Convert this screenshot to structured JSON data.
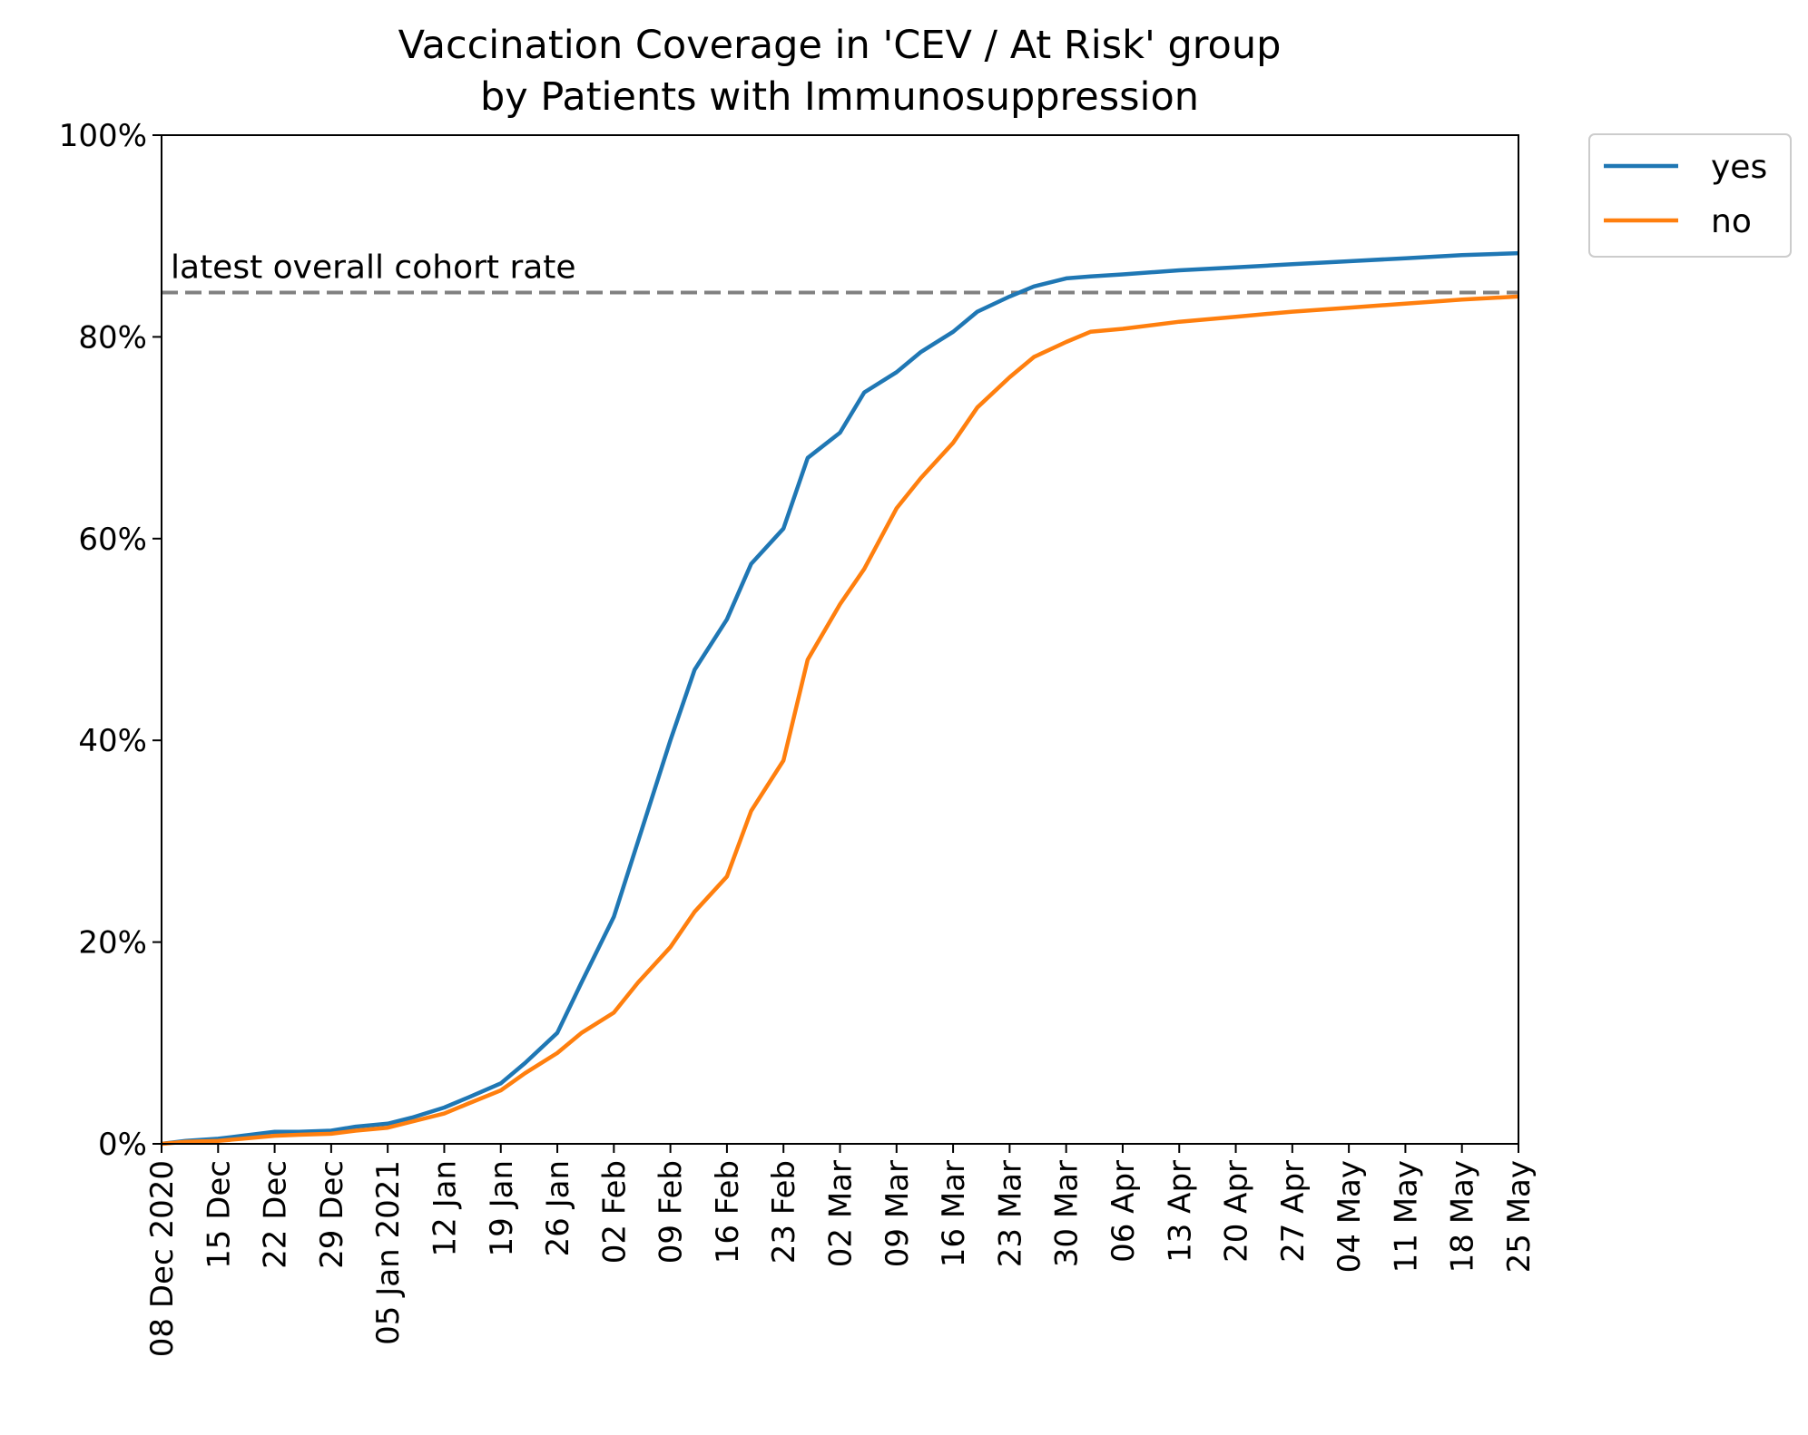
{
  "chart_data": {
    "type": "line",
    "title": "Vaccination Coverage in 'CEV / At Risk' group",
    "subtitle": "by Patients with Immunosuppression",
    "xlabel": "",
    "ylabel": "",
    "xlim": [
      "2020-12-08",
      "2021-05-25"
    ],
    "ylim": [
      0,
      100
    ],
    "grid": false,
    "legend_position": "outside-top-right",
    "x_ticks": [
      "2020-12-08",
      "2020-12-15",
      "2020-12-22",
      "2020-12-29",
      "2021-01-05",
      "2021-01-12",
      "2021-01-19",
      "2021-01-26",
      "2021-02-02",
      "2021-02-09",
      "2021-02-16",
      "2021-02-23",
      "2021-03-02",
      "2021-03-09",
      "2021-03-16",
      "2021-03-23",
      "2021-03-30",
      "2021-04-06",
      "2021-04-13",
      "2021-04-20",
      "2021-04-27",
      "2021-05-04",
      "2021-05-11",
      "2021-05-18",
      "2021-05-25"
    ],
    "x_tick_labels": [
      "08 Dec 2020",
      "15 Dec",
      "22 Dec",
      "29 Dec",
      "05 Jan 2021",
      "12 Jan",
      "19 Jan",
      "26 Jan",
      "02 Feb",
      "09 Feb",
      "16 Feb",
      "23 Feb",
      "02 Mar",
      "09 Mar",
      "16 Mar",
      "23 Mar",
      "30 Mar",
      "06 Apr",
      "13 Apr",
      "20 Apr",
      "27 Apr",
      "04 May",
      "11 May",
      "18 May",
      "25 May"
    ],
    "y_ticks": [
      0,
      20,
      40,
      60,
      80,
      100
    ],
    "y_tick_labels": [
      "0%",
      "20%",
      "40%",
      "60%",
      "80%",
      "100%"
    ],
    "reference_line": {
      "y": 84.4,
      "label": "latest overall cohort rate",
      "color": "#808080",
      "style": "dashed"
    },
    "series": [
      {
        "name": "yes",
        "color": "#1f77b4",
        "points": [
          [
            "2020-12-08",
            0
          ],
          [
            "2020-12-11",
            0.3
          ],
          [
            "2020-12-15",
            0.5
          ],
          [
            "2020-12-18",
            0.8
          ],
          [
            "2020-12-22",
            1.2
          ],
          [
            "2020-12-25",
            1.2
          ],
          [
            "2020-12-29",
            1.3
          ],
          [
            "2021-01-01",
            1.7
          ],
          [
            "2021-01-05",
            2.0
          ],
          [
            "2021-01-08",
            2.6
          ],
          [
            "2021-01-12",
            3.6
          ],
          [
            "2021-01-15",
            4.6
          ],
          [
            "2021-01-19",
            6.0
          ],
          [
            "2021-01-22",
            8.0
          ],
          [
            "2021-01-26",
            11.0
          ],
          [
            "2021-01-29",
            16.0
          ],
          [
            "2021-02-02",
            22.5
          ],
          [
            "2021-02-05",
            30.0
          ],
          [
            "2021-02-09",
            40.0
          ],
          [
            "2021-02-12",
            47.0
          ],
          [
            "2021-02-16",
            52.0
          ],
          [
            "2021-02-19",
            57.5
          ],
          [
            "2021-02-23",
            61.0
          ],
          [
            "2021-02-26",
            68.0
          ],
          [
            "2021-03-02",
            70.5
          ],
          [
            "2021-03-05",
            74.5
          ],
          [
            "2021-03-09",
            76.5
          ],
          [
            "2021-03-12",
            78.5
          ],
          [
            "2021-03-16",
            80.5
          ],
          [
            "2021-03-19",
            82.5
          ],
          [
            "2021-03-23",
            84.0
          ],
          [
            "2021-03-26",
            85.0
          ],
          [
            "2021-03-30",
            85.8
          ],
          [
            "2021-04-02",
            86.0
          ],
          [
            "2021-04-06",
            86.2
          ],
          [
            "2021-04-13",
            86.6
          ],
          [
            "2021-04-20",
            86.9
          ],
          [
            "2021-04-27",
            87.2
          ],
          [
            "2021-05-04",
            87.5
          ],
          [
            "2021-05-11",
            87.8
          ],
          [
            "2021-05-18",
            88.1
          ],
          [
            "2021-05-25",
            88.3
          ]
        ]
      },
      {
        "name": "no",
        "color": "#ff7f0e",
        "points": [
          [
            "2020-12-08",
            0
          ],
          [
            "2020-12-11",
            0.2
          ],
          [
            "2020-12-15",
            0.3
          ],
          [
            "2020-12-18",
            0.5
          ],
          [
            "2020-12-22",
            0.8
          ],
          [
            "2020-12-25",
            0.9
          ],
          [
            "2020-12-29",
            1.0
          ],
          [
            "2021-01-01",
            1.3
          ],
          [
            "2021-01-05",
            1.6
          ],
          [
            "2021-01-08",
            2.2
          ],
          [
            "2021-01-12",
            3.0
          ],
          [
            "2021-01-15",
            4.0
          ],
          [
            "2021-01-19",
            5.3
          ],
          [
            "2021-01-22",
            7.0
          ],
          [
            "2021-01-26",
            9.0
          ],
          [
            "2021-01-29",
            11.0
          ],
          [
            "2021-02-02",
            13.0
          ],
          [
            "2021-02-05",
            16.0
          ],
          [
            "2021-02-09",
            19.5
          ],
          [
            "2021-02-12",
            23.0
          ],
          [
            "2021-02-16",
            26.5
          ],
          [
            "2021-02-19",
            33.0
          ],
          [
            "2021-02-23",
            38.0
          ],
          [
            "2021-02-26",
            48.0
          ],
          [
            "2021-03-02",
            53.5
          ],
          [
            "2021-03-05",
            57.0
          ],
          [
            "2021-03-09",
            63.0
          ],
          [
            "2021-03-12",
            66.0
          ],
          [
            "2021-03-16",
            69.5
          ],
          [
            "2021-03-19",
            73.0
          ],
          [
            "2021-03-23",
            76.0
          ],
          [
            "2021-03-26",
            78.0
          ],
          [
            "2021-03-30",
            79.5
          ],
          [
            "2021-04-02",
            80.5
          ],
          [
            "2021-04-06",
            80.8
          ],
          [
            "2021-04-13",
            81.5
          ],
          [
            "2021-04-20",
            82.0
          ],
          [
            "2021-04-27",
            82.5
          ],
          [
            "2021-05-04",
            82.9
          ],
          [
            "2021-05-11",
            83.3
          ],
          [
            "2021-05-18",
            83.7
          ],
          [
            "2021-05-25",
            84.0
          ]
        ]
      }
    ]
  }
}
